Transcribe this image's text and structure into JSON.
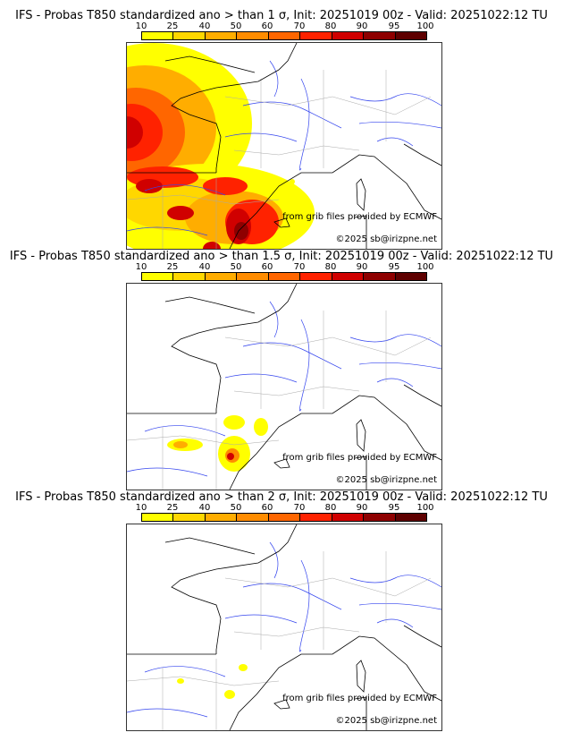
{
  "colorbar": {
    "ticks": [
      "10",
      "25",
      "40",
      "50",
      "60",
      "70",
      "80",
      "90",
      "95",
      "100"
    ],
    "colors": [
      "#ffff00",
      "#ffd700",
      "#ffad00",
      "#ff8c00",
      "#ff6600",
      "#ff2200",
      "#d00000",
      "#8e0000",
      "#5e0000"
    ]
  },
  "panels": [
    {
      "title": "IFS - Probas T850  standardized ano > than 1 σ, Init: 20251019 00z - Valid: 20251022:12 TU",
      "source": "from grib files provided by ECMWF",
      "copyright": "©2025 sb@irizpne.net"
    },
    {
      "title": "IFS - Probas T850  standardized ano > than 1.5 σ, Init: 20251019 00z - Valid: 20251022:12 TU",
      "source": "from grib files provided by ECMWF",
      "copyright": "©2025 sb@irizpne.net"
    },
    {
      "title": "IFS - Probas T850  standardized ano > than 2 σ, Init: 20251019 00z - Valid: 20251022:12 TU",
      "source": "from grib files provided by ECMWF",
      "copyright": "©2025 sb@irizpne.net"
    }
  ]
}
